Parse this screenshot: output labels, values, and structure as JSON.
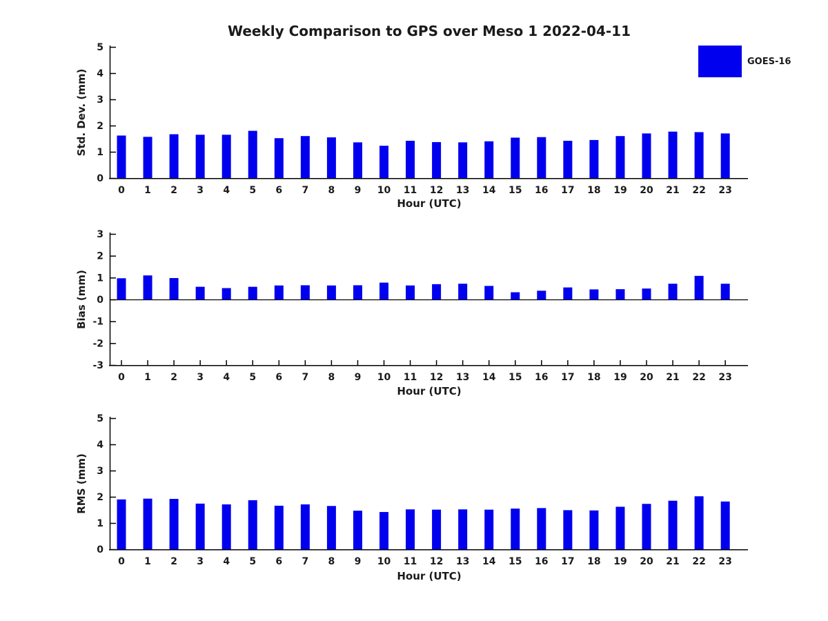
{
  "title": "Weekly Comparison to GPS over Meso 1 2022-04-11",
  "legend": {
    "position": "upper-right",
    "items": [
      {
        "label": "GOES-16",
        "color": "#0000ee"
      }
    ]
  },
  "colors": {
    "bar": "#0000ee",
    "axis": "#000000",
    "text": "#1a1a1a",
    "background": "#ffffff"
  },
  "chart_data": [
    {
      "type": "bar",
      "panel": "std-dev",
      "xlabel": "Hour (UTC)",
      "ylabel": "Std. Dev. (mm)",
      "categories": [
        0,
        1,
        2,
        3,
        4,
        5,
        6,
        7,
        8,
        9,
        10,
        11,
        12,
        13,
        14,
        15,
        16,
        17,
        18,
        19,
        20,
        21,
        22,
        23
      ],
      "series": [
        {
          "name": "GOES-16",
          "values": [
            1.62,
            1.57,
            1.67,
            1.65,
            1.65,
            1.8,
            1.52,
            1.6,
            1.55,
            1.36,
            1.23,
            1.42,
            1.37,
            1.36,
            1.4,
            1.54,
            1.56,
            1.42,
            1.45,
            1.6,
            1.7,
            1.77,
            1.75,
            1.7
          ]
        }
      ],
      "ylim": [
        0,
        5
      ],
      "yticks": [
        0,
        1,
        2,
        3,
        4,
        5
      ],
      "grid": false
    },
    {
      "type": "bar",
      "panel": "bias",
      "xlabel": "Hour (UTC)",
      "ylabel": "Bias (mm)",
      "categories": [
        0,
        1,
        2,
        3,
        4,
        5,
        6,
        7,
        8,
        9,
        10,
        11,
        12,
        13,
        14,
        15,
        16,
        17,
        18,
        19,
        20,
        21,
        22,
        23
      ],
      "series": [
        {
          "name": "GOES-16",
          "values": [
            0.97,
            1.1,
            0.98,
            0.58,
            0.52,
            0.58,
            0.64,
            0.65,
            0.64,
            0.65,
            0.77,
            0.64,
            0.7,
            0.72,
            0.62,
            0.33,
            0.4,
            0.55,
            0.46,
            0.47,
            0.5,
            0.72,
            1.08,
            0.72
          ]
        }
      ],
      "ylim": [
        -3,
        3
      ],
      "yticks": [
        -3,
        -2,
        -1,
        0,
        1,
        2,
        3
      ],
      "grid": false
    },
    {
      "type": "bar",
      "panel": "rms",
      "xlabel": "Hour (UTC)",
      "ylabel": "RMS (mm)",
      "categories": [
        0,
        1,
        2,
        3,
        4,
        5,
        6,
        7,
        8,
        9,
        10,
        11,
        12,
        13,
        14,
        15,
        16,
        17,
        18,
        19,
        20,
        21,
        22,
        23
      ],
      "series": [
        {
          "name": "GOES-16",
          "values": [
            1.9,
            1.93,
            1.92,
            1.74,
            1.71,
            1.87,
            1.66,
            1.71,
            1.65,
            1.47,
            1.42,
            1.52,
            1.51,
            1.52,
            1.51,
            1.55,
            1.57,
            1.49,
            1.48,
            1.62,
            1.73,
            1.85,
            2.02,
            1.82
          ]
        }
      ],
      "ylim": [
        0,
        5
      ],
      "yticks": [
        0,
        1,
        2,
        3,
        4,
        5
      ],
      "grid": false
    }
  ]
}
